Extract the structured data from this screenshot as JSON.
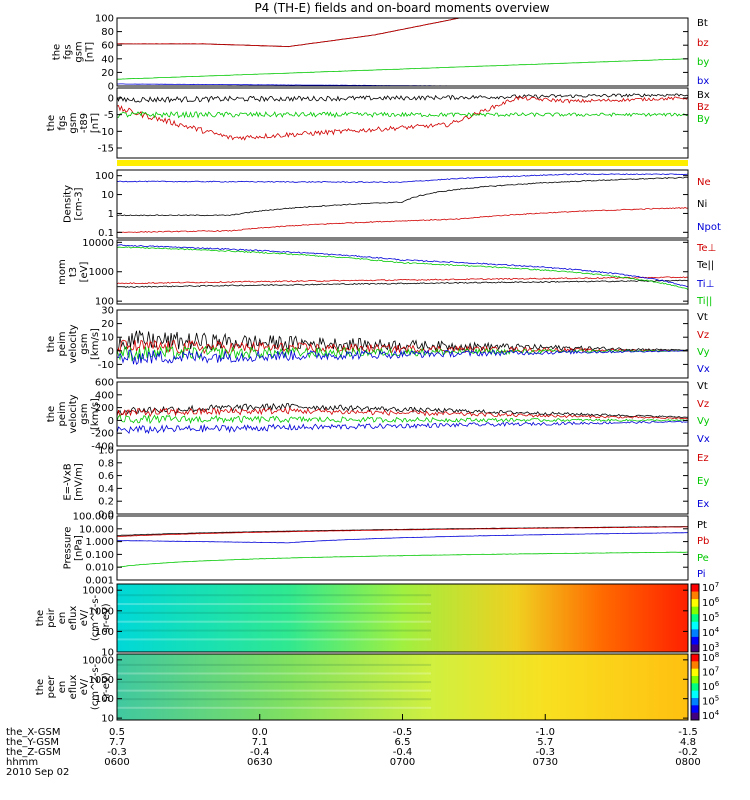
{
  "title": "P4 (TH-E) fields and on-board moments overview",
  "colors": {
    "black": "#000000",
    "red": "#d00000",
    "green": "#00c800",
    "blue": "#0000d8",
    "yellow": "#ffee00"
  },
  "chart_data": [
    {
      "id": "p1",
      "type": "line",
      "ylabel": [
        "the",
        "fgs",
        "gsm",
        "[nT]"
      ],
      "ylim": [
        0,
        100
      ],
      "yticks": [
        "0",
        "20",
        "40",
        "60",
        "80",
        "100"
      ],
      "series": [
        {
          "name": "Bt",
          "color": "black",
          "x": [
            0,
            0.15,
            0.3,
            0.45,
            0.6,
            1
          ],
          "y": [
            62,
            62,
            58,
            75,
            100,
            115
          ]
        },
        {
          "name": "bz",
          "color": "red",
          "x": [
            0,
            0.15,
            0.3,
            0.45,
            0.6,
            1
          ],
          "y": [
            62,
            62,
            58,
            75,
            100,
            115
          ]
        },
        {
          "name": "by",
          "color": "green",
          "x": [
            0,
            1
          ],
          "y": [
            10,
            40
          ]
        },
        {
          "name": "bx",
          "color": "blue",
          "x": [
            0,
            1
          ],
          "y": [
            3,
            -2
          ]
        }
      ]
    },
    {
      "id": "p2",
      "type": "line",
      "ylabel": [
        "the",
        "fgs",
        "gsm",
        "-t89",
        "[nT]"
      ],
      "ylim": [
        -18,
        3
      ],
      "yticks": [
        "-15",
        "-10",
        "-5",
        "0"
      ],
      "series": [
        {
          "name": "Bx",
          "color": "black",
          "x": [
            0,
            0.5,
            1
          ],
          "y": [
            -0.5,
            0,
            1
          ]
        },
        {
          "name": "Bz",
          "color": "red",
          "x": [
            0,
            0.2,
            0.4,
            0.58,
            0.7,
            0.8,
            1
          ],
          "y": [
            -3,
            -12,
            -10,
            -8,
            0,
            -1,
            0
          ]
        },
        {
          "name": "By",
          "color": "green",
          "x": [
            0,
            0.5,
            1
          ],
          "y": [
            -5,
            -5,
            -5
          ]
        }
      ]
    },
    {
      "id": "p3",
      "type": "line",
      "ylabel": [
        "Density",
        "[cm-3]"
      ],
      "ylim": [
        0.05,
        200
      ],
      "yscale": "log",
      "yticks": [
        "0.1",
        "1",
        "10",
        "100"
      ],
      "series": [
        {
          "name": "Ne",
          "color": "red",
          "x": [
            0,
            0.2,
            0.6,
            1
          ],
          "y": [
            0.1,
            0.12,
            0.5,
            2
          ]
        },
        {
          "name": "Ni",
          "color": "black",
          "x": [
            0,
            0.2,
            0.5,
            1
          ],
          "y": [
            0.8,
            0.8,
            4,
            80
          ]
        },
        {
          "name": "Npot",
          "color": "blue",
          "x": [
            0,
            0.5,
            0.8
          ],
          "y": [
            50,
            45,
            120
          ]
        }
      ]
    },
    {
      "id": "p4",
      "type": "line",
      "ylabel": [
        "mom",
        "t3",
        "[eV]"
      ],
      "ylim": [
        80,
        12000
      ],
      "yscale": "log",
      "yticks": [
        "100",
        "1000",
        "10000"
      ],
      "series": [
        {
          "name": "Te⊥",
          "color": "red",
          "x": [
            0,
            1
          ],
          "y": [
            400,
            650
          ]
        },
        {
          "name": "Te||",
          "color": "black",
          "x": [
            0,
            1
          ],
          "y": [
            300,
            500
          ]
        },
        {
          "name": "Ti⊥",
          "color": "blue",
          "x": [
            0,
            0.5,
            1
          ],
          "y": [
            8000,
            2500,
            300
          ]
        },
        {
          "name": "Ti||",
          "color": "green",
          "x": [
            0,
            0.5,
            1
          ],
          "y": [
            7000,
            2000,
            250
          ]
        }
      ]
    },
    {
      "id": "p5",
      "type": "line",
      "ylabel": [
        "the",
        "peim",
        "velocity",
        "gsm",
        "[km/s]"
      ],
      "ylim": [
        -20,
        30
      ],
      "yticks": [
        "-10",
        "0",
        "10",
        "20",
        "30"
      ],
      "series": [
        {
          "name": "Vt",
          "color": "black",
          "x": [
            0,
            1
          ],
          "y": [
            8,
            0.5
          ]
        },
        {
          "name": "Vz",
          "color": "red",
          "x": [
            0,
            1
          ],
          "y": [
            3,
            0
          ]
        },
        {
          "name": "Vy",
          "color": "green",
          "x": [
            0,
            1
          ],
          "y": [
            -2,
            0
          ]
        },
        {
          "name": "Vx",
          "color": "blue",
          "x": [
            0,
            1
          ],
          "y": [
            -5,
            0
          ]
        }
      ]
    },
    {
      "id": "p6",
      "type": "line",
      "ylabel": [
        "the",
        "peim",
        "velocity",
        "gsm",
        "[km/s]"
      ],
      "ylim": [
        -400,
        600
      ],
      "yticks": [
        "-400",
        "-200",
        "0",
        "200",
        "400",
        "600"
      ],
      "series": [
        {
          "name": "Vt",
          "color": "black",
          "x": [
            0,
            0.3,
            1
          ],
          "y": [
            150,
            220,
            50
          ]
        },
        {
          "name": "Vz",
          "color": "red",
          "x": [
            0,
            0.3,
            1
          ],
          "y": [
            120,
            150,
            30
          ]
        },
        {
          "name": "Vy",
          "color": "green",
          "x": [
            0,
            1
          ],
          "y": [
            20,
            0
          ]
        },
        {
          "name": "Vx",
          "color": "blue",
          "x": [
            0,
            1
          ],
          "y": [
            -150,
            -20
          ]
        }
      ]
    },
    {
      "id": "p7",
      "type": "line",
      "ylabel": [
        "E=-VxB",
        "[mV/m]"
      ],
      "ylim": [
        0,
        1
      ],
      "yticks": [
        "0.0",
        "0.2",
        "0.4",
        "0.6",
        "0.8",
        "1.0"
      ],
      "series": [
        {
          "name": "Ez",
          "color": "red"
        },
        {
          "name": "Ey",
          "color": "green"
        },
        {
          "name": "Ex",
          "color": "blue"
        }
      ]
    },
    {
      "id": "p8",
      "type": "line",
      "ylabel": [
        "Pressure",
        "[nPa]"
      ],
      "ylim": [
        0.001,
        100
      ],
      "yscale": "log",
      "yticks": [
        "0.001",
        "0.010",
        "0.100",
        "1.000",
        "10.000",
        "100.000"
      ],
      "series": [
        {
          "name": "Pt",
          "color": "black",
          "x": [
            0,
            1
          ],
          "y": [
            3,
            15
          ]
        },
        {
          "name": "Pb",
          "color": "red",
          "x": [
            0,
            1
          ],
          "y": [
            2.5,
            14
          ]
        },
        {
          "name": "Pe",
          "color": "green",
          "x": [
            0,
            1
          ],
          "y": [
            0.01,
            0.15
          ]
        },
        {
          "name": "Pi",
          "color": "blue",
          "x": [
            0,
            0.3,
            1
          ],
          "y": [
            1.2,
            0.8,
            5
          ]
        }
      ]
    },
    {
      "id": "p9",
      "type": "heatmap",
      "ylabel": [
        "the",
        "peir",
        "en",
        "eflux",
        "eV/",
        "(cm^2-s-",
        "sr-eV)"
      ],
      "ylim": [
        10,
        20000
      ],
      "yscale": "log",
      "yticks": [
        "10",
        "100",
        "1000",
        "10000"
      ],
      "colorbar": [
        "10^3",
        "10^4",
        "10^5",
        "10^6",
        "10^7"
      ]
    },
    {
      "id": "p10",
      "type": "heatmap",
      "ylabel": [
        "the",
        "peer",
        "en",
        "eflux",
        "eV/",
        "(cm^2-s-",
        "sr-eV)"
      ],
      "ylim": [
        8,
        20000
      ],
      "yscale": "log",
      "yticks": [
        "10",
        "100",
        "1000",
        "10000"
      ],
      "colorbar": [
        "10^4",
        "10^5",
        "10^6",
        "10^7",
        "10^8"
      ]
    }
  ],
  "xaxis": {
    "rows": [
      {
        "label": "the_X-GSM",
        "values": [
          "0.5",
          "0.0",
          "-0.5",
          "-1.0",
          "-1.5"
        ]
      },
      {
        "label": "the_Y-GSM",
        "values": [
          "7.7",
          "7.1",
          "6.5",
          "5.7",
          "4.8"
        ]
      },
      {
        "label": "the_Z-GSM",
        "values": [
          "-0.3",
          "-0.4",
          "-0.4",
          "-0.3",
          "-0.2"
        ]
      },
      {
        "label": "hhmm",
        "values": [
          "0600",
          "0630",
          "0700",
          "0730",
          "0800"
        ]
      }
    ],
    "date": "2010 Sep 02"
  }
}
